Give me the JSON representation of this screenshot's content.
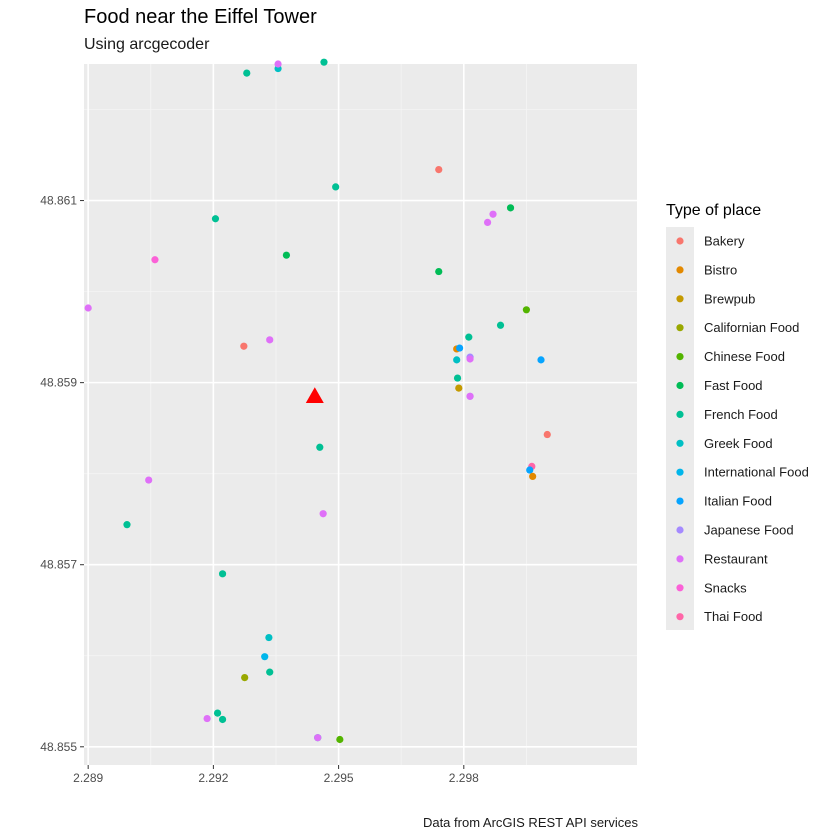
{
  "chart_data": {
    "type": "scatter",
    "title": "Food near the Eiffel Tower",
    "subtitle": "Using arcgecoder",
    "caption": "Data from ArcGIS REST API services",
    "xlabel": "",
    "ylabel": "",
    "xlim": [
      2.2889,
      2.30215
    ],
    "ylim": [
      48.8548,
      48.8625
    ],
    "x_ticks": [
      2.289,
      2.292,
      2.295,
      2.298
    ],
    "x_tick_labels": [
      "2.289",
      "2.292",
      "2.295",
      "2.298"
    ],
    "y_ticks": [
      48.855,
      48.857,
      48.859,
      48.861
    ],
    "y_tick_labels": [
      "48.855",
      "48.857",
      "48.859",
      "48.861"
    ],
    "grid": true,
    "legend": {
      "title": "Type of place",
      "position": "right",
      "entries": [
        {
          "name": "Bakery",
          "color": "#F8766D"
        },
        {
          "name": "Bistro",
          "color": "#E38900"
        },
        {
          "name": "Brewpub",
          "color": "#C49A00"
        },
        {
          "name": "Californian Food",
          "color": "#99A800"
        },
        {
          "name": "Chinese Food",
          "color": "#53B400"
        },
        {
          "name": "Fast Food",
          "color": "#00BC56"
        },
        {
          "name": "French Food",
          "color": "#00C094"
        },
        {
          "name": "Greek Food",
          "color": "#00BFC4"
        },
        {
          "name": "International Food",
          "color": "#00B6EB"
        },
        {
          "name": "Italian Food",
          "color": "#06A4FF"
        },
        {
          "name": "Japanese Food",
          "color": "#A58AFF"
        },
        {
          "name": "Restaurant",
          "color": "#DF70F8"
        },
        {
          "name": "Snacks",
          "color": "#FB61D7"
        },
        {
          "name": "Thai Food",
          "color": "#FF66A8"
        }
      ]
    },
    "highlight": {
      "x": 2.29443,
      "y": 48.85885,
      "color": "#FF0000",
      "shape": "triangle"
    },
    "points": [
      {
        "x": 2.2928,
        "y": 48.8624,
        "type": "French Food"
      },
      {
        "x": 2.29355,
        "y": 48.86245,
        "type": "Greek Food"
      },
      {
        "x": 2.29355,
        "y": 48.8625,
        "type": "Restaurant"
      },
      {
        "x": 2.29465,
        "y": 48.86252,
        "type": "French Food"
      },
      {
        "x": 2.29493,
        "y": 48.86115,
        "type": "French Food"
      },
      {
        "x": 2.2974,
        "y": 48.86134,
        "type": "Bakery"
      },
      {
        "x": 2.29205,
        "y": 48.8608,
        "type": "French Food"
      },
      {
        "x": 2.29375,
        "y": 48.8604,
        "type": "Fast Food"
      },
      {
        "x": 2.2974,
        "y": 48.86022,
        "type": "Fast Food"
      },
      {
        "x": 2.29912,
        "y": 48.86092,
        "type": "Fast Food"
      },
      {
        "x": 2.2987,
        "y": 48.86085,
        "type": "Restaurant"
      },
      {
        "x": 2.29857,
        "y": 48.86076,
        "type": "Restaurant"
      },
      {
        "x": 2.2906,
        "y": 48.86035,
        "type": "Snacks"
      },
      {
        "x": 2.289,
        "y": 48.85982,
        "type": "Restaurant"
      },
      {
        "x": 2.2995,
        "y": 48.8598,
        "type": "Chinese Food"
      },
      {
        "x": 2.29888,
        "y": 48.85963,
        "type": "French Food"
      },
      {
        "x": 2.29812,
        "y": 48.8595,
        "type": "French Food"
      },
      {
        "x": 2.29335,
        "y": 48.85947,
        "type": "Restaurant"
      },
      {
        "x": 2.29273,
        "y": 48.8594,
        "type": "Bakery"
      },
      {
        "x": 2.29783,
        "y": 48.85937,
        "type": "Bistro"
      },
      {
        "x": 2.2979,
        "y": 48.85938,
        "type": "Italian Food"
      },
      {
        "x": 2.29815,
        "y": 48.85928,
        "type": "Japanese Food"
      },
      {
        "x": 2.29815,
        "y": 48.85926,
        "type": "Restaurant"
      },
      {
        "x": 2.29783,
        "y": 48.85925,
        "type": "Greek Food"
      },
      {
        "x": 2.29985,
        "y": 48.85925,
        "type": "Italian Food"
      },
      {
        "x": 2.29785,
        "y": 48.85905,
        "type": "French Food"
      },
      {
        "x": 2.29788,
        "y": 48.85894,
        "type": "Brewpub"
      },
      {
        "x": 2.29815,
        "y": 48.85885,
        "type": "Japanese Food"
      },
      {
        "x": 2.29815,
        "y": 48.85885,
        "type": "Restaurant"
      },
      {
        "x": 2.3,
        "y": 48.85843,
        "type": "Bakery"
      },
      {
        "x": 2.29963,
        "y": 48.85808,
        "type": "Thai Food"
      },
      {
        "x": 2.29958,
        "y": 48.85804,
        "type": "Italian Food"
      },
      {
        "x": 2.29965,
        "y": 48.85797,
        "type": "Bistro"
      },
      {
        "x": 2.29455,
        "y": 48.85829,
        "type": "French Food"
      },
      {
        "x": 2.29045,
        "y": 48.85793,
        "type": "Restaurant"
      },
      {
        "x": 2.29463,
        "y": 48.85756,
        "type": "Restaurant"
      },
      {
        "x": 2.28993,
        "y": 48.85744,
        "type": "French Food"
      },
      {
        "x": 2.29222,
        "y": 48.8569,
        "type": "French Food"
      },
      {
        "x": 2.29333,
        "y": 48.8562,
        "type": "Greek Food"
      },
      {
        "x": 2.29323,
        "y": 48.85599,
        "type": "International Food"
      },
      {
        "x": 2.29335,
        "y": 48.85582,
        "type": "French Food"
      },
      {
        "x": 2.29275,
        "y": 48.85576,
        "type": "Californian Food"
      },
      {
        "x": 2.2921,
        "y": 48.85537,
        "type": "French Food"
      },
      {
        "x": 2.29222,
        "y": 48.8553,
        "type": "French Food"
      },
      {
        "x": 2.29185,
        "y": 48.85531,
        "type": "Restaurant"
      },
      {
        "x": 2.2945,
        "y": 48.8551,
        "type": "Greek Food"
      },
      {
        "x": 2.2945,
        "y": 48.8551,
        "type": "Restaurant"
      },
      {
        "x": 2.29503,
        "y": 48.85508,
        "type": "Chinese Food"
      }
    ]
  }
}
